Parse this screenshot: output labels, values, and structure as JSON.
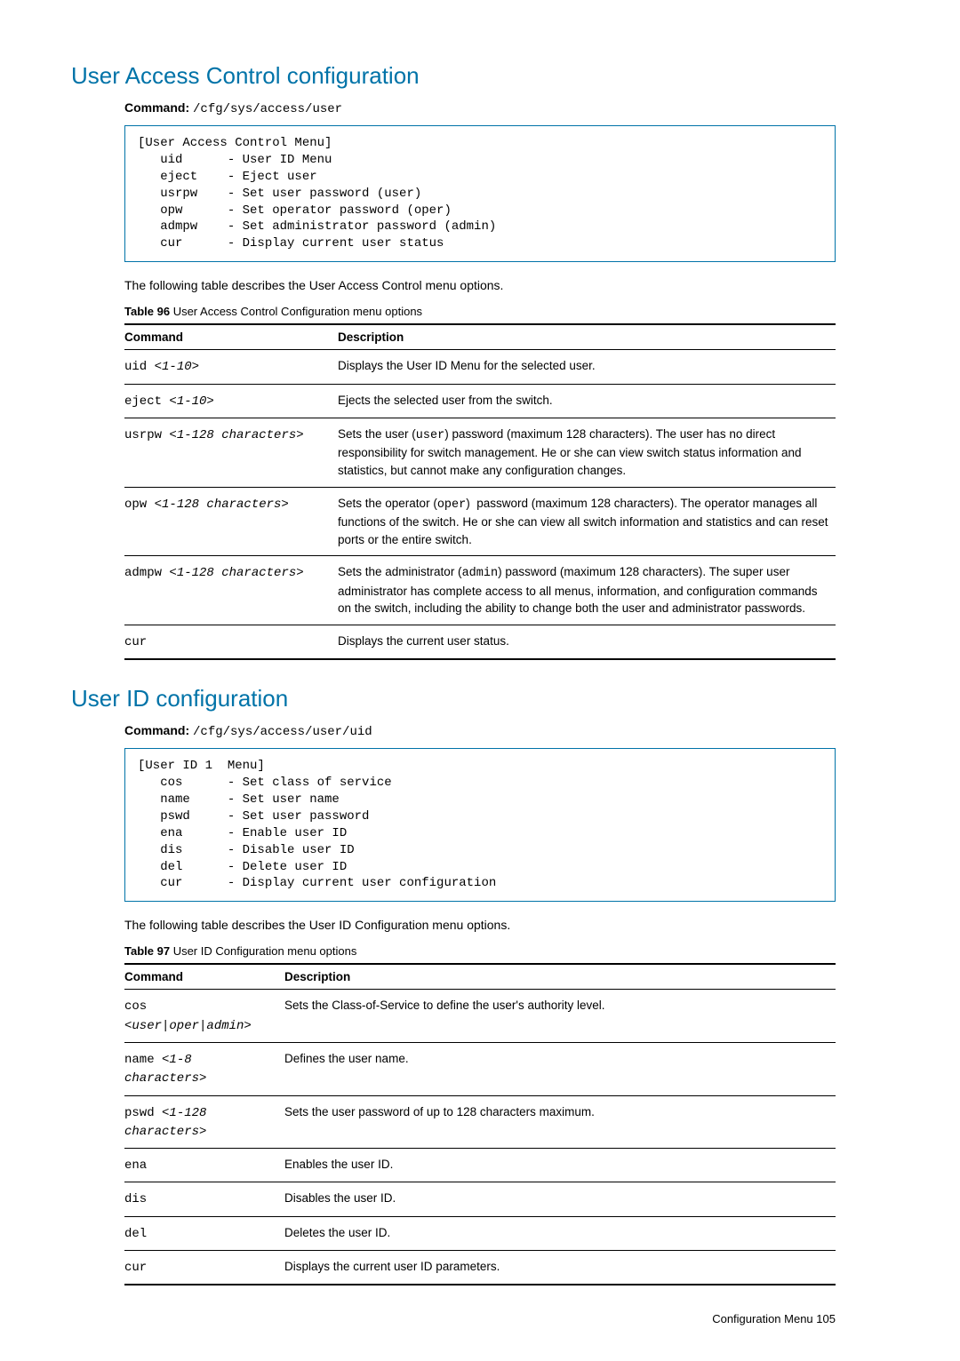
{
  "colors": {
    "accent": "#0073a8",
    "text": "#000000",
    "background": "#ffffff"
  },
  "footer": {
    "label": "Configuration Menu",
    "page": "105"
  },
  "sections": [
    {
      "title": "User Access Control configuration",
      "command_label": "Command:",
      "command_path": "/cfg/sys/access/user",
      "menu_text": "[User Access Control Menu]\n   uid      - User ID Menu\n   eject    - Eject user\n   usrpw    - Set user password (user)\n   opw      - Set operator password (oper)\n   admpw    - Set administrator password (admin)\n   cur      - Display current user status",
      "intro": "The following table describes the User Access Control menu options.",
      "table_caption_prefix": "Table 96",
      "table_caption": "User Access Control Configuration menu options",
      "col_widths": [
        "240px",
        "auto"
      ],
      "headers": [
        "Command",
        "Description"
      ],
      "rows": [
        {
          "cmd": "uid ",
          "arg": "<1-10>",
          "desc": "Displays the User ID Menu for the selected user."
        },
        {
          "cmd": "eject ",
          "arg": "<1-10>",
          "desc": "Ejects the selected user from the switch."
        },
        {
          "cmd": "usrpw ",
          "arg": "<1-128 characters>",
          "desc_html": "Sets the user (<span class=\"desc-mono\">user</span>) password (maximum 128 characters). The user has no direct responsibility for switch management. He or she can view switch status information and statistics, but cannot make any configuration changes."
        },
        {
          "cmd": "opw ",
          "arg": "<1-128 characters>",
          "desc_html": "Sets the operator (<span class=\"desc-mono\">oper</span>)&nbsp; password (maximum 128 characters). The operator manages all functions of the switch. He or she can view all switch information and statistics and can reset ports or the entire switch."
        },
        {
          "cmd": "admpw ",
          "arg": "<1-128 characters>",
          "desc_html": "Sets the administrator (<span class=\"desc-mono\">admin</span>) password (maximum 128 characters). The super user administrator has complete access to all menus, information, and configuration commands on the switch, including the ability to change both the user and administrator passwords."
        },
        {
          "cmd": "cur",
          "arg": "",
          "desc": "Displays the current user status."
        }
      ]
    },
    {
      "title": "User ID configuration",
      "command_label": "Command:",
      "command_path": "/cfg/sys/access/user/uid",
      "menu_text": "[User ID 1  Menu]\n   cos      - Set class of service\n   name     - Set user name\n   pswd     - Set user password\n   ena      - Enable user ID\n   dis      - Disable user ID\n   del      - Delete user ID\n   cur      - Display current user configuration",
      "intro": "The following table describes the User ID Configuration menu options.",
      "table_caption_prefix": "Table 97",
      "table_caption": "User ID Configuration menu options",
      "col_widths": [
        "180px",
        "auto"
      ],
      "headers": [
        "Command",
        "Description"
      ],
      "rows": [
        {
          "cmd": "cos",
          "arg_line2": "<user|oper|admin>",
          "desc": "Sets the Class-of-Service to define the user's authority level."
        },
        {
          "cmd": "name ",
          "arg": "<1-8",
          "arg_line2": "characters>",
          "desc": "Defines the user name."
        },
        {
          "cmd": "pswd ",
          "arg": "<1-128",
          "arg_line2": "characters>",
          "desc": "Sets the user password of up to 128 characters maximum."
        },
        {
          "cmd": "ena",
          "arg": "",
          "desc": "Enables the user ID."
        },
        {
          "cmd": "dis",
          "arg": "",
          "desc": "Disables the user ID."
        },
        {
          "cmd": "del",
          "arg": "",
          "desc": "Deletes the user ID."
        },
        {
          "cmd": "cur",
          "arg": "",
          "desc": "Displays the current user ID parameters."
        }
      ]
    }
  ]
}
